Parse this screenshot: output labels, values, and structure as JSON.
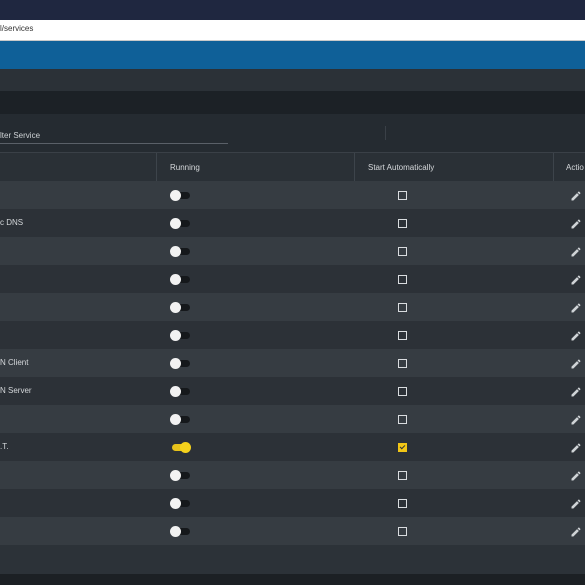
{
  "browser": {
    "url": "l/services"
  },
  "filter": {
    "placeholder": "lter Service"
  },
  "table": {
    "columns": {
      "running": "Running",
      "start_automatically": "Start Automatically",
      "actions": "Actio"
    },
    "rows": [
      {
        "name": "",
        "running": false,
        "start_automatically": false
      },
      {
        "name": "c DNS",
        "running": false,
        "start_automatically": false
      },
      {
        "name": "",
        "running": false,
        "start_automatically": false
      },
      {
        "name": "",
        "running": false,
        "start_automatically": false
      },
      {
        "name": "",
        "running": false,
        "start_automatically": false
      },
      {
        "name": "",
        "running": false,
        "start_automatically": false
      },
      {
        "name": "N Client",
        "running": false,
        "start_automatically": false
      },
      {
        "name": "N Server",
        "running": false,
        "start_automatically": false
      },
      {
        "name": "",
        "running": false,
        "start_automatically": false
      },
      {
        "name": ".T.",
        "running": true,
        "start_automatically": true
      },
      {
        "name": "",
        "running": false,
        "start_automatically": false
      },
      {
        "name": "",
        "running": false,
        "start_automatically": false
      },
      {
        "name": "",
        "running": false,
        "start_automatically": false
      }
    ]
  },
  "icons": {
    "edit": "pencil-icon"
  },
  "colors": {
    "header_blue": "#0f6098",
    "toggle_on": "#f5d21c",
    "checkbox_checked": "#f2c616"
  }
}
